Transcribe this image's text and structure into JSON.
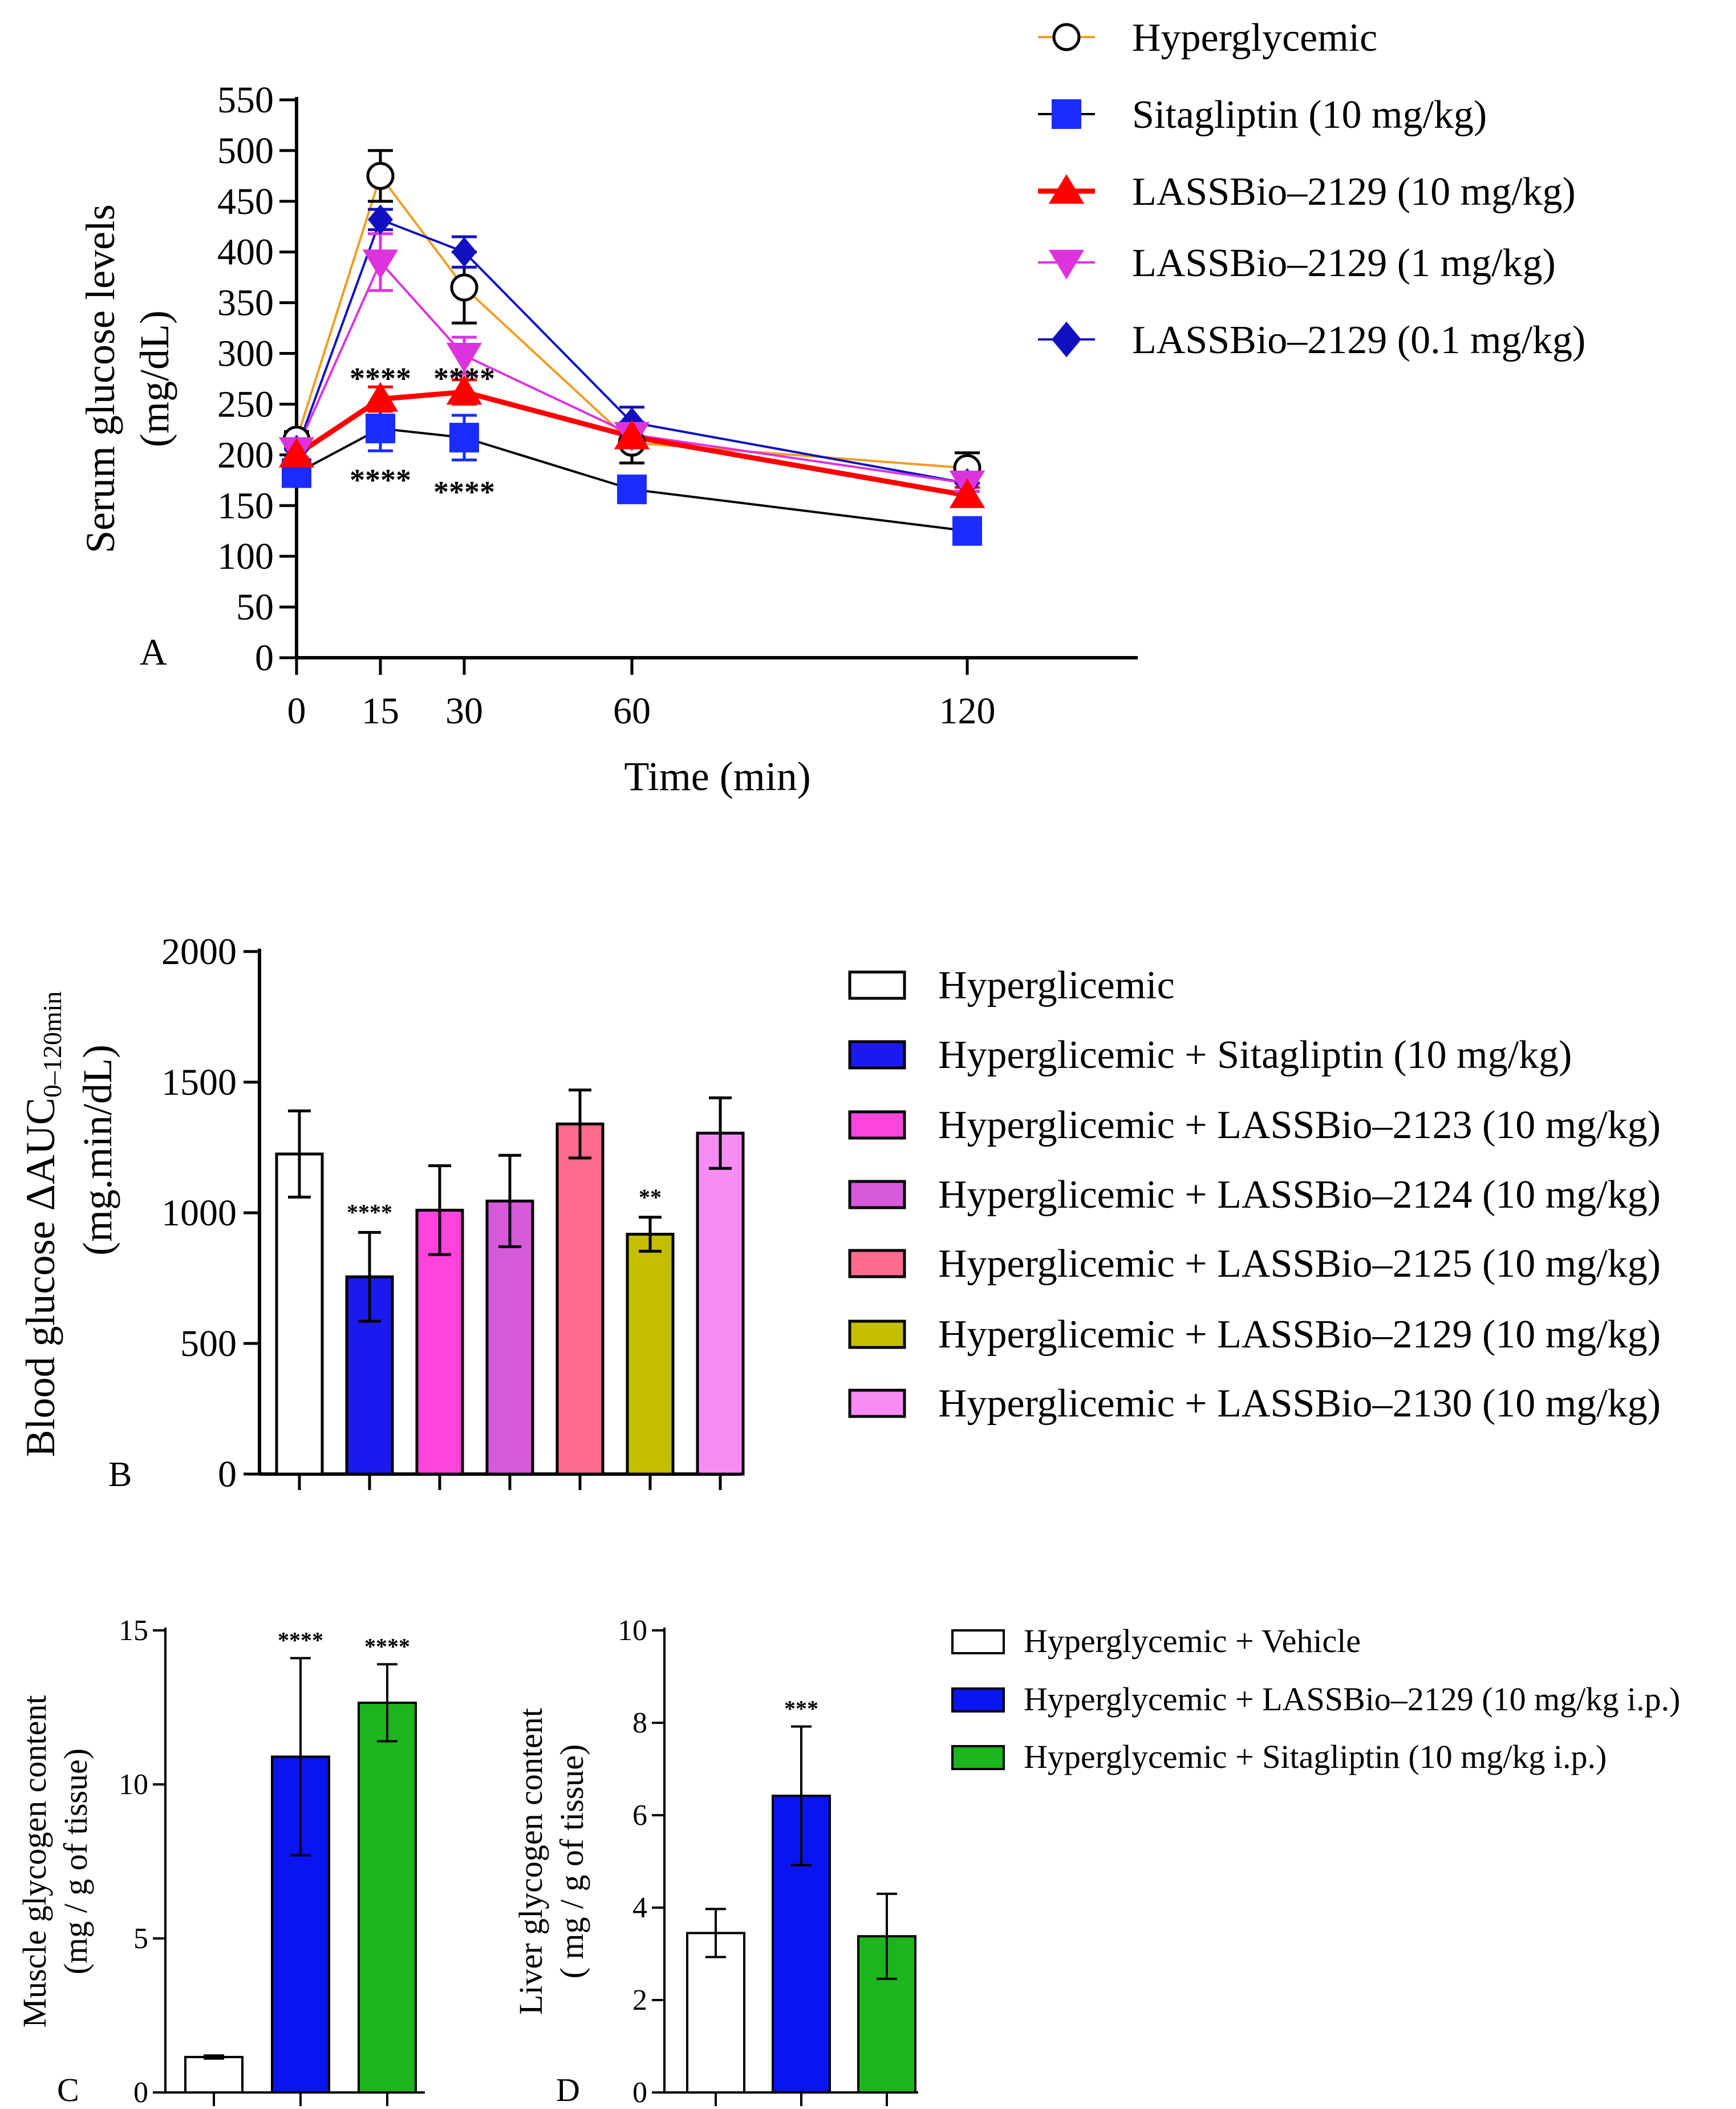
{
  "chart_data": [
    {
      "panel": "A",
      "type": "line",
      "xlabel": "Time (min)",
      "ylabel": [
        "Serum glucose levels",
        "(mg/dL)"
      ],
      "x": [
        0,
        15,
        30,
        60,
        120
      ],
      "xlim": [
        0,
        150
      ],
      "ylim": [
        0,
        550
      ],
      "yticks": [
        0,
        50,
        100,
        150,
        200,
        250,
        300,
        350,
        400,
        450,
        500,
        550
      ],
      "xticks": [
        0,
        15,
        30,
        60,
        120
      ],
      "series": [
        {
          "name": "Hyperglycemic",
          "color": "#f39c1f",
          "marker": "circle-open",
          "values": [
            215,
            475,
            365,
            212,
            187
          ],
          "errors": [
            8,
            25,
            35,
            20,
            15
          ]
        },
        {
          "name": "Sitagliptin (10 mg/kg)",
          "color": "#000000",
          "marker_color": "#1a2cff",
          "marker": "square",
          "values": [
            182,
            226,
            217,
            166,
            125
          ],
          "errors": [
            8,
            22,
            22,
            8,
            8
          ]
        },
        {
          "name": "LASSBio–2129 (10 mg/kg)",
          "color": "#ff0000",
          "marker": "triangle-up",
          "values": [
            200,
            255,
            262,
            218,
            160
          ],
          "errors": [
            8,
            12,
            12,
            8,
            8
          ]
        },
        {
          "name": "LASSBio–2129 (1 mg/kg)",
          "color": "#dd33dd",
          "marker": "triangle-down",
          "values": [
            205,
            390,
            298,
            220,
            172
          ],
          "errors": [
            8,
            28,
            18,
            8,
            8
          ]
        },
        {
          "name": "LASSBio–2129 (0.1 mg/kg)",
          "color": "#1010c0",
          "marker": "diamond",
          "values": [
            205,
            432,
            400,
            232,
            172
          ],
          "errors": [
            8,
            10,
            15,
            15,
            8
          ]
        }
      ],
      "annotations": [
        {
          "text": "****",
          "x": 15,
          "y": 282
        },
        {
          "text": "****",
          "x": 30,
          "y": 282
        },
        {
          "text": "****",
          "x": 15,
          "y": 182
        },
        {
          "text": "****",
          "x": 30,
          "y": 170
        }
      ]
    },
    {
      "panel": "B",
      "type": "bar",
      "ylabel": [
        "Blood glucose ΔAUC",
        "0–120min",
        "(mg.min/dL)"
      ],
      "ylim": [
        0,
        2000
      ],
      "yticks": [
        0,
        500,
        1000,
        1500,
        2000
      ],
      "categories": [
        "Hyperglicemic",
        "Hyperglicemic + Sitagliptin (10 mg/kg)",
        "Hyperglicemic + LASSBio–2123 (10 mg/kg)",
        "Hyperglicemic + LASSBio–2124 (10 mg/kg)",
        "Hyperglicemic + LASSBio–2125 (10 mg/kg)",
        "Hyperglicemic + LASSBio–2129 (10 mg/kg)",
        "Hyperglicemic + LASSBio–2130 (10 mg/kg)"
      ],
      "values": [
        1225,
        755,
        1010,
        1045,
        1340,
        918,
        1305
      ],
      "errors": [
        165,
        170,
        170,
        175,
        130,
        65,
        135
      ],
      "colors": [
        "#ffffff",
        "#1a1aee",
        "#ff44dd",
        "#d55ad9",
        "#ff6b8e",
        "#c4be00",
        "#f78cf5"
      ],
      "annotations": [
        {
          "text": "****",
          "bar": 1
        },
        {
          "text": "**",
          "bar": 5
        }
      ]
    },
    {
      "panel": "C",
      "type": "bar",
      "ylabel": [
        "Muscle glycogen content",
        "(mg / g of tissue)"
      ],
      "ylim": [
        0,
        15
      ],
      "yticks": [
        0,
        5,
        10,
        15
      ],
      "values": [
        1.15,
        10.9,
        12.65
      ],
      "errors": [
        0.05,
        3.2,
        1.25
      ],
      "colors": [
        "#ffffff",
        "#0a14ee",
        "#1db51d"
      ],
      "annotations": [
        {
          "text": "****",
          "bar": 1
        },
        {
          "text": "****",
          "bar": 2
        }
      ]
    },
    {
      "panel": "D",
      "type": "bar",
      "ylabel": [
        "Liver glycogen content",
        "( mg / g of tissue)"
      ],
      "ylim": [
        0,
        10
      ],
      "yticks": [
        0,
        2,
        4,
        6,
        8,
        10
      ],
      "values": [
        3.45,
        6.42,
        3.38
      ],
      "errors": [
        0.52,
        1.5,
        0.92
      ],
      "colors": [
        "#ffffff",
        "#0a14ee",
        "#1db51d"
      ],
      "annotations": [
        {
          "text": "***",
          "bar": 1
        }
      ],
      "legend": [
        "Hyperglycemic + Vehicle",
        "Hyperglycemic + LASSBio–2129 (10 mg/kg i.p.)",
        "Hyperglycemic + Sitagliptin (10 mg/kg i.p.)"
      ]
    }
  ]
}
